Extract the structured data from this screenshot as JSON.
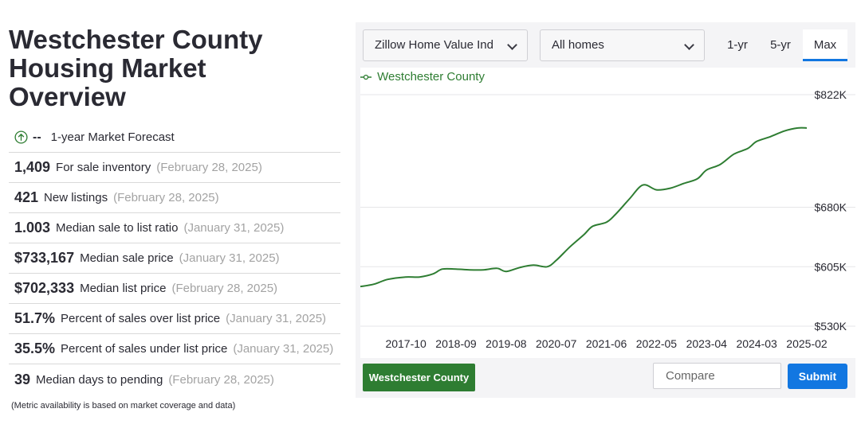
{
  "title_lines": [
    "Westchester County",
    "Housing Market",
    "Overview"
  ],
  "forecast": {
    "value": "--",
    "label": "1-year Market Forecast",
    "icon": "arrow-up-circle-icon"
  },
  "metrics": [
    {
      "value": "1,409",
      "label": "For sale inventory",
      "date": "(February 28, 2025)"
    },
    {
      "value": "421",
      "label": "New listings",
      "date": "(February 28, 2025)"
    },
    {
      "value": "1.003",
      "label": "Median sale to list ratio",
      "date": "(January 31, 2025)"
    },
    {
      "value": "$733,167",
      "label": "Median sale price",
      "date": "(January 31, 2025)"
    },
    {
      "value": "$702,333",
      "label": "Median list price",
      "date": "(February 28, 2025)"
    },
    {
      "value": "51.7%",
      "label": "Percent of sales over list price",
      "date": "(January 31, 2025)"
    },
    {
      "value": "35.5%",
      "label": "Percent of sales under list price",
      "date": "(January 31, 2025)"
    },
    {
      "value": "39",
      "label": "Median days to pending",
      "date": "(February 28, 2025)"
    }
  ],
  "footnote": "(Metric availability is based on market coverage and data)",
  "controls": {
    "metric_select": "Zillow Home Value Ind",
    "type_select": "All homes",
    "ranges": [
      "1-yr",
      "5-yr",
      "Max"
    ],
    "active_range": "Max"
  },
  "buttons": {
    "county": "Westchester County",
    "compare_placeholder": "Compare",
    "submit": "Submit"
  },
  "colors": {
    "series": "#2e7d32",
    "accent": "#1277e1",
    "county_button": "#2e7d32"
  },
  "chart_data": {
    "type": "line",
    "series": [
      {
        "name": "Westchester County",
        "x": [
          "2016-12",
          "2017-03",
          "2017-06",
          "2017-10",
          "2018-01",
          "2018-04",
          "2018-06",
          "2018-09",
          "2018-12",
          "2019-03",
          "2019-06",
          "2019-08",
          "2019-11",
          "2020-02",
          "2020-05",
          "2020-07",
          "2020-10",
          "2021-01",
          "2021-03",
          "2021-06",
          "2021-08",
          "2021-11",
          "2022-02",
          "2022-05",
          "2022-08",
          "2022-11",
          "2023-02",
          "2023-04",
          "2023-07",
          "2023-10",
          "2024-01",
          "2024-03",
          "2024-06",
          "2024-09",
          "2024-12",
          "2025-02"
        ],
        "values": [
          580,
          583,
          589,
          592,
          592,
          596,
          602,
          602,
          601,
          601,
          603,
          599,
          604,
          607,
          605,
          613,
          630,
          645,
          656,
          661,
          671,
          690,
          708,
          702,
          704,
          710,
          716,
          727,
          734,
          747,
          754,
          763,
          769,
          776,
          780,
          780
        ]
      }
    ],
    "x_ticks": [
      "2017-10",
      "2018-09",
      "2019-08",
      "2020-07",
      "2021-06",
      "2022-05",
      "2023-04",
      "2024-03",
      "2025-02"
    ],
    "y_ticks": [
      {
        "label": "$530K",
        "value": 530
      },
      {
        "label": "$605K",
        "value": 605
      },
      {
        "label": "$680K",
        "value": 680
      },
      {
        "label": "$822K",
        "value": 822
      }
    ],
    "ylim": [
      530,
      822
    ],
    "y_unit": "thousands USD",
    "grid": "horizontal",
    "legend": "top-left"
  }
}
